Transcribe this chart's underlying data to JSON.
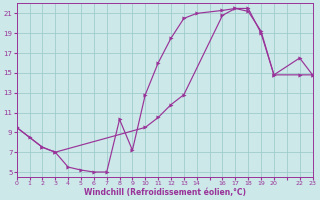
{
  "xlabel": "Windchill (Refroidissement éolien,°C)",
  "bg_color": "#cce8e8",
  "grid_color": "#a0cccc",
  "line_color": "#993399",
  "line1_x": [
    0,
    1,
    2,
    3,
    4,
    5,
    6,
    7,
    8,
    9,
    10,
    11,
    12,
    13,
    14,
    16,
    17,
    18,
    19,
    20,
    22,
    23
  ],
  "line1_y": [
    9.5,
    8.5,
    7.5,
    7.0,
    5.5,
    5.2,
    5.0,
    5.0,
    10.3,
    7.2,
    12.8,
    16.0,
    18.5,
    20.5,
    21.0,
    21.3,
    21.5,
    21.2,
    19.2,
    14.8,
    16.5,
    14.8
  ],
  "line2_x": [
    0,
    2,
    3,
    10,
    11,
    12,
    13,
    16,
    17,
    18,
    19,
    20,
    22,
    23
  ],
  "line2_y": [
    9.5,
    7.5,
    7.0,
    9.5,
    10.5,
    11.8,
    12.8,
    20.8,
    21.5,
    21.5,
    19.0,
    14.8,
    14.8,
    14.8
  ],
  "xlim": [
    0,
    23
  ],
  "ylim": [
    4.5,
    22
  ],
  "xtick_labels": [
    "0",
    "1",
    "2",
    "3",
    "4",
    "5",
    "6",
    "7",
    "8",
    "9",
    "10",
    "11",
    "12",
    "13",
    "14",
    "",
    "16",
    "17",
    "18",
    "19",
    "20",
    "",
    "22",
    "23"
  ],
  "xtick_pos": [
    0,
    1,
    2,
    3,
    4,
    5,
    6,
    7,
    8,
    9,
    10,
    11,
    12,
    13,
    14,
    15,
    16,
    17,
    18,
    19,
    20,
    21,
    22,
    23
  ],
  "yticks": [
    5,
    7,
    9,
    11,
    13,
    15,
    17,
    19,
    21
  ],
  "marker": ">"
}
